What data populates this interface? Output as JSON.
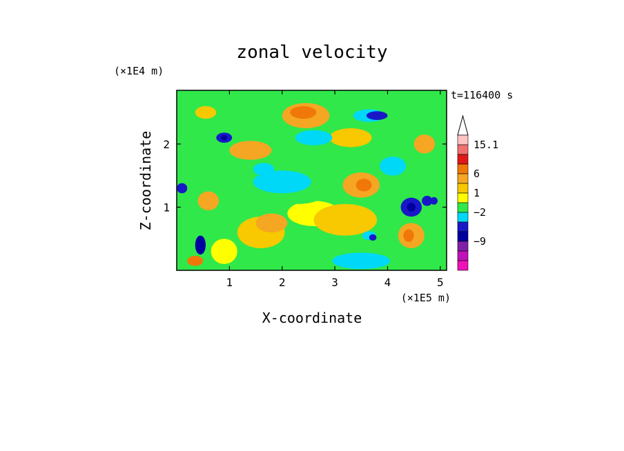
{
  "chart_data": {
    "type": "heatmap",
    "title": "zonal velocity",
    "xlabel": "X-coordinate",
    "ylabel": "Z-coordinate",
    "x_unit_label": "(×1E5 m)",
    "y_unit_label": "(×1E4 m)",
    "time_label": "t=116400 s",
    "xlim": [
      0,
      5.12
    ],
    "ylim": [
      0,
      2.85
    ],
    "x_ticks": [
      "1",
      "2",
      "3",
      "4",
      "5"
    ],
    "y_ticks": [
      "1",
      "2"
    ],
    "colorbar": {
      "tick_labels": [
        "15.1",
        "6",
        "1",
        "-2",
        "-9"
      ],
      "levels_top_to_bottom": [
        {
          "color": "#ffc2c2"
        },
        {
          "color": "#f07070"
        },
        {
          "color": "#e01818"
        },
        {
          "color": "#f07808"
        },
        {
          "color": "#f5a623"
        },
        {
          "color": "#f8c800"
        },
        {
          "color": "#ffff00"
        },
        {
          "color": "#30e84a"
        },
        {
          "color": "#00d8f8"
        },
        {
          "color": "#1818c8"
        },
        {
          "color": "#0000a0"
        },
        {
          "color": "#8020a8"
        },
        {
          "color": "#c010b8"
        },
        {
          "color": "#f010b8"
        }
      ]
    },
    "field": {
      "background_level": 7,
      "blobs": [
        {
          "x": 2.45,
          "z": 2.45,
          "rx": 0.45,
          "rz": 0.2,
          "level": 4
        },
        {
          "x": 2.4,
          "z": 2.5,
          "rx": 0.25,
          "rz": 0.1,
          "level": 3
        },
        {
          "x": 1.6,
          "z": 0.6,
          "rx": 0.45,
          "rz": 0.25,
          "level": 5
        },
        {
          "x": 1.8,
          "z": 0.75,
          "rx": 0.3,
          "rz": 0.15,
          "level": 4
        },
        {
          "x": 2.6,
          "z": 0.9,
          "rx": 0.5,
          "rz": 0.2,
          "level": 6
        },
        {
          "x": 3.2,
          "z": 0.8,
          "rx": 0.6,
          "rz": 0.25,
          "level": 5
        },
        {
          "x": 3.5,
          "z": 1.35,
          "rx": 0.35,
          "rz": 0.2,
          "level": 4
        },
        {
          "x": 3.55,
          "z": 1.35,
          "rx": 0.15,
          "rz": 0.1,
          "level": 3
        },
        {
          "x": 4.45,
          "z": 0.55,
          "rx": 0.25,
          "rz": 0.2,
          "level": 4
        },
        {
          "x": 4.4,
          "z": 0.55,
          "rx": 0.1,
          "rz": 0.1,
          "level": 3
        },
        {
          "x": 1.4,
          "z": 1.9,
          "rx": 0.4,
          "rz": 0.15,
          "level": 4
        },
        {
          "x": 3.3,
          "z": 2.1,
          "rx": 0.4,
          "rz": 0.15,
          "level": 5
        },
        {
          "x": 0.6,
          "z": 1.1,
          "rx": 0.2,
          "rz": 0.15,
          "level": 4
        },
        {
          "x": 0.9,
          "z": 0.3,
          "rx": 0.25,
          "rz": 0.2,
          "level": 6
        },
        {
          "x": 2.3,
          "z": 1.3,
          "rx": 0.6,
          "rz": 0.25,
          "level": 7
        },
        {
          "x": 2.0,
          "z": 1.4,
          "rx": 0.55,
          "rz": 0.18,
          "level": 8
        },
        {
          "x": 2.6,
          "z": 2.1,
          "rx": 0.35,
          "rz": 0.12,
          "level": 8
        },
        {
          "x": 3.5,
          "z": 0.15,
          "rx": 0.55,
          "rz": 0.13,
          "level": 8
        },
        {
          "x": 4.1,
          "z": 1.65,
          "rx": 0.25,
          "rz": 0.15,
          "level": 8
        },
        {
          "x": 3.65,
          "z": 2.45,
          "rx": 0.3,
          "rz": 0.1,
          "level": 8
        },
        {
          "x": 3.8,
          "z": 2.45,
          "rx": 0.2,
          "rz": 0.07,
          "level": 9
        },
        {
          "x": 4.45,
          "z": 1.0,
          "rx": 0.2,
          "rz": 0.15,
          "level": 9
        },
        {
          "x": 4.45,
          "z": 1.0,
          "rx": 0.08,
          "rz": 0.07,
          "level": 10
        },
        {
          "x": 3.65,
          "z": 0.55,
          "rx": 0.13,
          "rz": 0.07,
          "level": 8
        },
        {
          "x": 3.72,
          "z": 0.52,
          "rx": 0.07,
          "rz": 0.05,
          "level": 9
        },
        {
          "x": 1.65,
          "z": 1.6,
          "rx": 0.2,
          "rz": 0.1,
          "level": 8
        },
        {
          "x": 0.9,
          "z": 2.1,
          "rx": 0.15,
          "rz": 0.08,
          "level": 9
        },
        {
          "x": 0.9,
          "z": 2.1,
          "rx": 0.06,
          "rz": 0.04,
          "level": 10
        },
        {
          "x": 4.75,
          "z": 1.1,
          "rx": 0.1,
          "rz": 0.08,
          "level": 9
        },
        {
          "x": 4.88,
          "z": 1.1,
          "rx": 0.07,
          "rz": 0.06,
          "level": 9
        },
        {
          "x": 0.1,
          "z": 1.3,
          "rx": 0.1,
          "rz": 0.08,
          "level": 9
        },
        {
          "x": 0.55,
          "z": 2.5,
          "rx": 0.2,
          "rz": 0.1,
          "level": 5
        },
        {
          "x": 4.7,
          "z": 2.0,
          "rx": 0.2,
          "rz": 0.15,
          "level": 4
        },
        {
          "x": 0.45,
          "z": 0.4,
          "rx": 0.1,
          "rz": 0.15,
          "level": 10
        },
        {
          "x": 0.35,
          "z": 0.15,
          "rx": 0.15,
          "rz": 0.08,
          "level": 3
        }
      ]
    }
  }
}
